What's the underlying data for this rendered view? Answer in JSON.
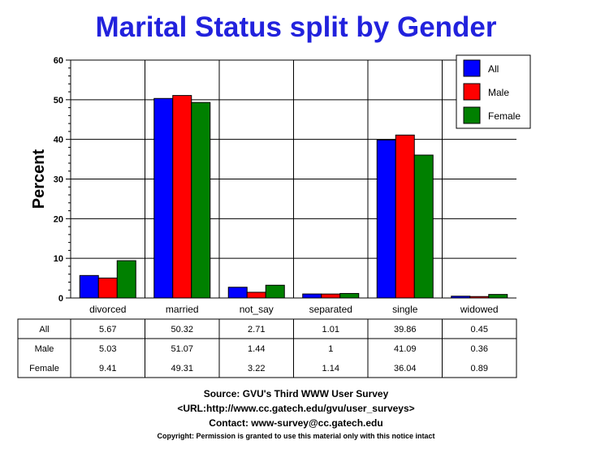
{
  "chart_data": {
    "type": "bar",
    "title": "Marital Status split by Gender",
    "ylabel": "Percent",
    "xlabel": "",
    "ylim": [
      0,
      60
    ],
    "yticks": [
      0,
      10,
      20,
      30,
      40,
      50,
      60
    ],
    "grid": true,
    "legend_position": "top-right",
    "categories": [
      "divorced",
      "married",
      "not_say",
      "separated",
      "single",
      "widowed"
    ],
    "series": [
      {
        "name": "All",
        "color": "#0000ff",
        "values": [
          5.67,
          50.32,
          2.71,
          1.01,
          39.86,
          0.45
        ]
      },
      {
        "name": "Male",
        "color": "#ff0000",
        "values": [
          5.03,
          51.07,
          1.44,
          1,
          41.09,
          0.36
        ]
      },
      {
        "name": "Female",
        "color": "#008000",
        "values": [
          9.41,
          49.31,
          3.22,
          1.14,
          36.04,
          0.89
        ]
      }
    ],
    "table": {
      "rows": [
        {
          "label": "All",
          "cells": [
            "5.67",
            "50.32",
            "2.71",
            "1.01",
            "39.86",
            "0.45"
          ]
        },
        {
          "label": "Male",
          "cells": [
            "5.03",
            "51.07",
            "1.44",
            "1",
            "41.09",
            "0.36"
          ]
        },
        {
          "label": "Female",
          "cells": [
            "9.41",
            "49.31",
            "3.22",
            "1.14",
            "36.04",
            "0.89"
          ]
        }
      ]
    }
  },
  "footer": {
    "source": "Source: GVU's Third WWW User Survey",
    "url": "<URL:http://www.cc.gatech.edu/gvu/user_surveys>",
    "contact": "Contact: www-survey@cc.gatech.edu",
    "copyright": "Copyright: Permission is granted to use this material only with this notice intact"
  }
}
